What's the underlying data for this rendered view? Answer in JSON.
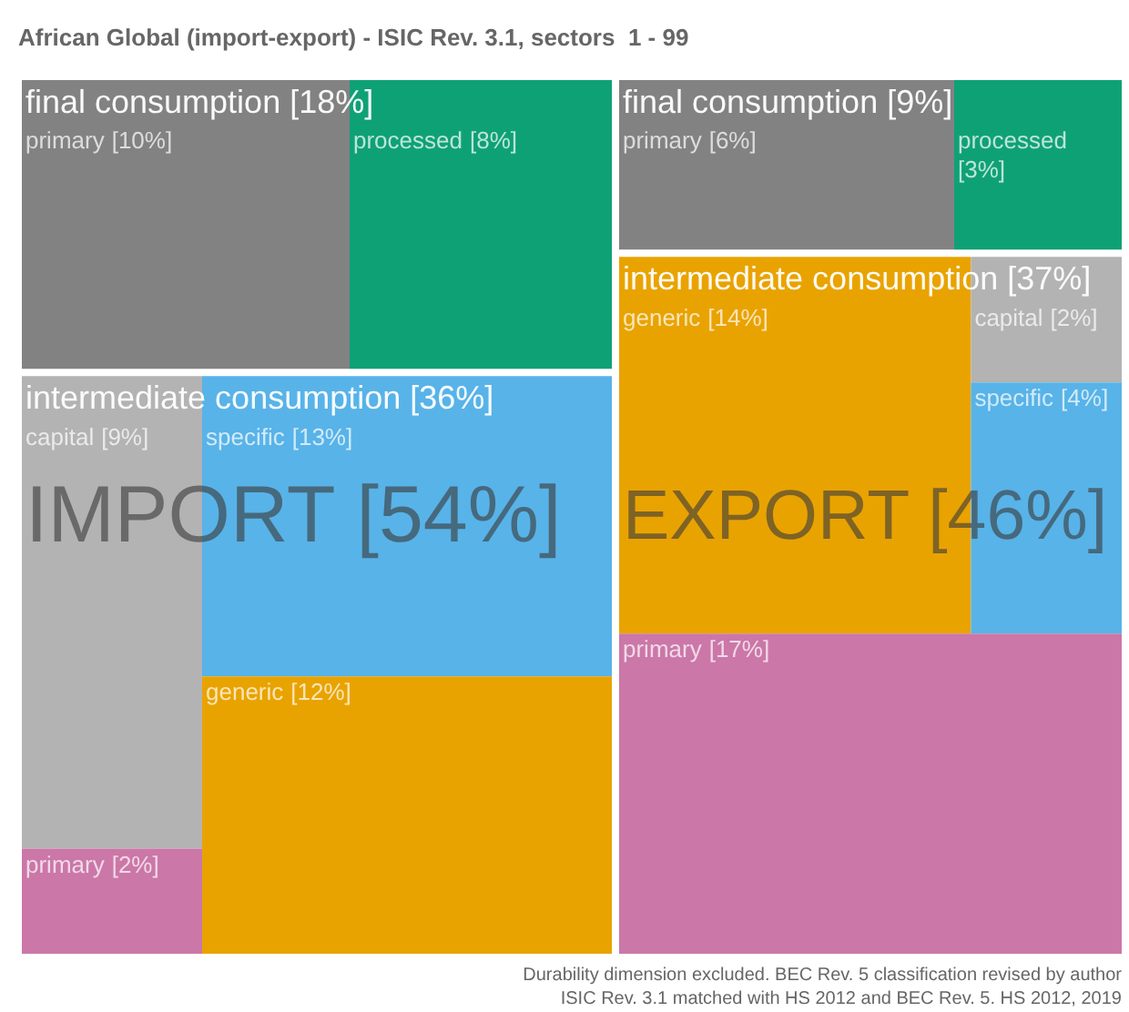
{
  "chart_data": [
    {
      "type": "other",
      "title": "IMPORT [54%]",
      "subtitle": "African Global (import-export) - ISIC Rev. 3.1, sectors  1 - 99",
      "categories": [
        "final consumption",
        "intermediate consumption"
      ],
      "totals": [
        "[18%]",
        "[36%]"
      ],
      "series": [
        {
          "name": "primary",
          "color": "#828282",
          "values": [
            10,
            null
          ],
          "value_labels": [
            "[10%]",
            null
          ]
        },
        {
          "name": "processed",
          "color": "#0fa176",
          "values": [
            8,
            null
          ],
          "value_labels": [
            "[8%]",
            null
          ]
        },
        {
          "name": "capital",
          "color": "#b3b3b3",
          "values": [
            null,
            9
          ],
          "value_labels": [
            null,
            "[9%]"
          ]
        },
        {
          "name": "primary",
          "color": "#cb77a8",
          "values": [
            null,
            2
          ],
          "value_labels": [
            null,
            "[2%]"
          ]
        },
        {
          "name": "specific",
          "color": "#58b3e8",
          "values": [
            null,
            13
          ],
          "value_labels": [
            null,
            "[13%]"
          ]
        },
        {
          "name": "generic",
          "color": "#e9a300",
          "values": [
            null,
            12
          ],
          "value_labels": [
            null,
            "[12%]"
          ]
        }
      ]
    },
    {
      "type": "other",
      "title": "EXPORT [46%]",
      "categories": [
        "final consumption",
        "intermediate consumption"
      ],
      "totals": [
        "[9%]",
        "[37%]"
      ],
      "series": [
        {
          "name": "primary",
          "color": "#828282",
          "values": [
            6,
            null
          ],
          "value_labels": [
            "[6%]",
            null
          ]
        },
        {
          "name": "processed",
          "color": "#0fa176",
          "values": [
            3,
            null
          ],
          "value_labels": [
            "[3%]",
            null
          ]
        },
        {
          "name": "generic",
          "color": "#e9a300",
          "values": [
            null,
            14
          ],
          "value_labels": [
            null,
            "[14%]"
          ]
        },
        {
          "name": "capital",
          "color": "#b3b3b3",
          "values": [
            null,
            2
          ],
          "value_labels": [
            null,
            "[2%]"
          ]
        },
        {
          "name": "specific",
          "color": "#58b3e8",
          "values": [
            null,
            4
          ],
          "value_labels": [
            null,
            "[4%]"
          ]
        },
        {
          "name": "primary",
          "color": "#cb77a8",
          "values": [
            null,
            17
          ],
          "value_labels": [
            null,
            "[17%]"
          ]
        }
      ],
      "annotations": [
        "Durability dimension excluded. BEC Rev. 5 classification revised by author",
        "ISIC Rev. 3.1 matched with HS 2012 and BEC Rev. 5. HS 2012, 2019"
      ]
    }
  ]
}
